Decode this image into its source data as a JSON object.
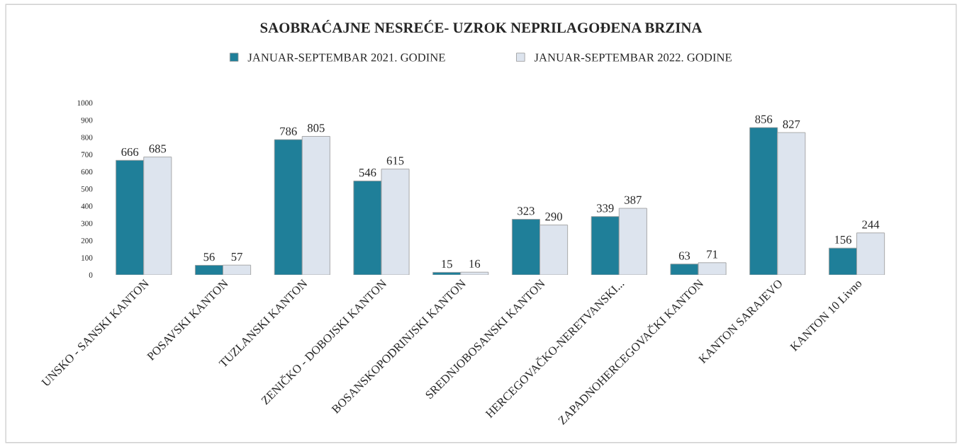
{
  "chart_data": {
    "type": "bar",
    "title": "SAOBRAĆAJNE NESREĆE- UZROK NEPRILAGOĐENA BRZINA",
    "categories": [
      "UNSKO - SANSKI KANTON",
      "POSAVSKI KANTON",
      "TUZLANSKI KANTON",
      "ZENIČKO - DOBOJSKI KANTON",
      "BOSANSKOPODRINJSKI KANTON",
      "SREDNJOBOSANSKI KANTON",
      "HERCEGOVAČKO-NERETVANSKI...",
      "ZAPADNOHERCEGOVAČKI KANTON",
      "KANTON SARAJEVO",
      "KANTON 10 Livno"
    ],
    "series": [
      {
        "name": "JANUAR-SEPTEMBAR 2021. GODINE",
        "color": "#1f7f99",
        "values": [
          666,
          56,
          786,
          546,
          15,
          323,
          339,
          63,
          856,
          156
        ]
      },
      {
        "name": "JANUAR-SEPTEMBAR 2022. GODINE",
        "color": "#dde4ee",
        "values": [
          685,
          57,
          805,
          615,
          16,
          290,
          387,
          71,
          827,
          244
        ]
      }
    ],
    "ylim": [
      0,
      1000
    ],
    "yticks": [
      0,
      100,
      200,
      300,
      400,
      500,
      600,
      700,
      800,
      900,
      1000
    ],
    "data_labels": true,
    "legend": "top",
    "grid": false
  }
}
